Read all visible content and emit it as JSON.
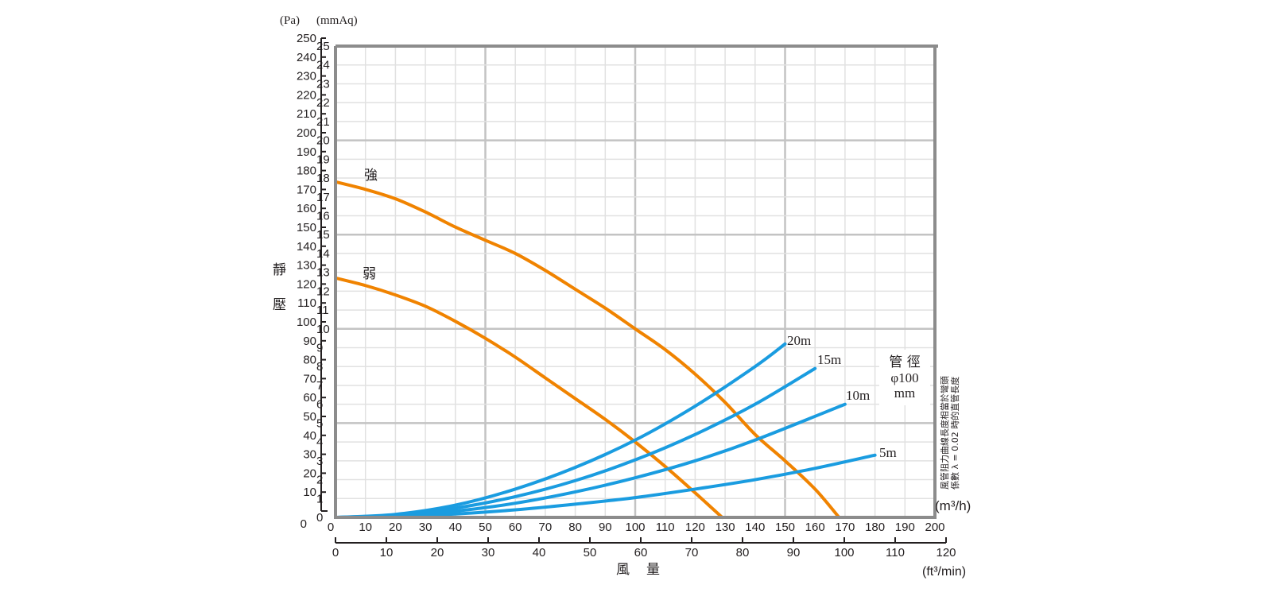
{
  "chart_data": {
    "type": "line",
    "title": "",
    "ylabel": "靜壓",
    "ylabel_chars": [
      "靜",
      "壓"
    ],
    "xlabel": "風量",
    "xlabel_chars": [
      "風",
      "量"
    ],
    "y_units": {
      "pa": "(Pa)",
      "mmaq": "(mmAq)"
    },
    "x_units": {
      "m3h": "(m³/h)",
      "ft3min": "(ft³/min)"
    },
    "x_m3h": {
      "range": [
        0,
        200
      ],
      "ticks": [
        0,
        10,
        20,
        30,
        40,
        50,
        60,
        70,
        80,
        90,
        100,
        110,
        120,
        130,
        140,
        150,
        160,
        170,
        180,
        190,
        200
      ]
    },
    "x_ft3min": {
      "range": [
        0,
        120
      ],
      "ticks": [
        0,
        10,
        20,
        30,
        40,
        50,
        60,
        70,
        80,
        90,
        100,
        110,
        120
      ]
    },
    "y_mmaq": {
      "range": [
        0,
        25
      ],
      "ticks": [
        0,
        1,
        2,
        3,
        4,
        5,
        6,
        7,
        8,
        9,
        10,
        11,
        12,
        13,
        14,
        15,
        16,
        17,
        18,
        19,
        20,
        21,
        22,
        23,
        24,
        25
      ]
    },
    "y_pa": {
      "range": [
        0,
        250
      ],
      "ticks": [
        0,
        10,
        20,
        30,
        40,
        50,
        60,
        70,
        80,
        90,
        100,
        110,
        120,
        130,
        140,
        150,
        160,
        170,
        180,
        190,
        200,
        210,
        220,
        230,
        240,
        250
      ]
    },
    "grid": true,
    "series": [
      {
        "name": "強",
        "kind": "fan",
        "color": "#f08300",
        "x": [
          0,
          10,
          20,
          30,
          40,
          50,
          60,
          70,
          80,
          90,
          100,
          110,
          120,
          130,
          140,
          150,
          160,
          168
        ],
        "y": [
          17.8,
          17.4,
          16.9,
          16.2,
          15.4,
          14.7,
          14.0,
          13.1,
          12.1,
          11.1,
          10.0,
          8.9,
          7.6,
          6.1,
          4.4,
          3.0,
          1.5,
          0
        ]
      },
      {
        "name": "弱",
        "kind": "fan",
        "color": "#f08300",
        "x": [
          0,
          10,
          20,
          30,
          40,
          50,
          60,
          70,
          80,
          90,
          100,
          110,
          120,
          129
        ],
        "y": [
          12.7,
          12.3,
          11.8,
          11.2,
          10.4,
          9.5,
          8.5,
          7.4,
          6.3,
          5.2,
          4.0,
          2.7,
          1.3,
          0
        ]
      },
      {
        "name": "20m",
        "kind": "duct",
        "color": "#1a9ce0",
        "x": [
          0,
          20,
          40,
          60,
          80,
          100,
          120,
          140,
          150
        ],
        "y": [
          0,
          0.16,
          0.65,
          1.5,
          2.65,
          4.1,
          5.9,
          8.0,
          9.2
        ]
      },
      {
        "name": "15m",
        "kind": "duct",
        "color": "#1a9ce0",
        "x": [
          0,
          20,
          40,
          60,
          80,
          100,
          120,
          140,
          160
        ],
        "y": [
          0,
          0.12,
          0.49,
          1.1,
          1.95,
          3.05,
          4.4,
          6.0,
          7.9
        ]
      },
      {
        "name": "10m",
        "kind": "duct",
        "color": "#1a9ce0",
        "x": [
          0,
          20,
          40,
          60,
          80,
          100,
          120,
          140,
          170
        ],
        "y": [
          0,
          0.08,
          0.33,
          0.75,
          1.35,
          2.1,
          3.0,
          4.1,
          6.0
        ]
      },
      {
        "name": "5m",
        "kind": "duct",
        "color": "#1a9ce0",
        "x": [
          0,
          20,
          40,
          60,
          80,
          100,
          120,
          140,
          160,
          180
        ],
        "y": [
          0,
          0.05,
          0.18,
          0.4,
          0.7,
          1.05,
          1.5,
          2.0,
          2.6,
          3.3
        ]
      }
    ],
    "annotations": {
      "pipe_title": "管 徑",
      "pipe_diameter": "φ100",
      "pipe_unit": "mm",
      "note_line1": "風管阻力曲線長度相當於彎頭",
      "note_line2": "係數 λ = 0.02 時的直管長度"
    },
    "colors": {
      "fan": "#f08300",
      "duct": "#1a9ce0",
      "grid_minor": "#e1e1e1",
      "grid_major": "#c3c3c3",
      "frame": "#8c8c8c"
    }
  }
}
